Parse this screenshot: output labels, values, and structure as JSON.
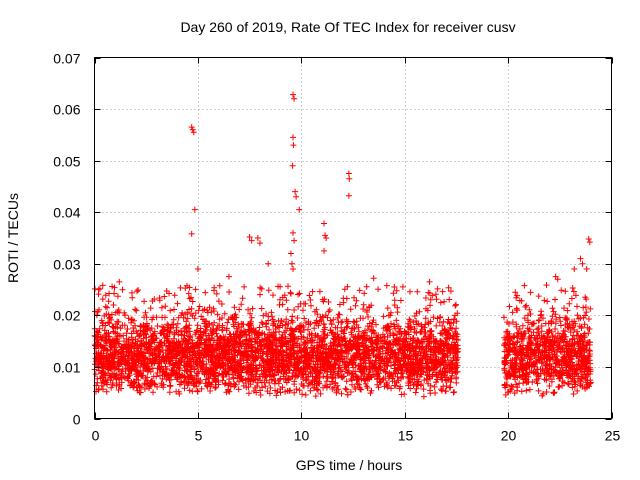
{
  "chart_data": {
    "type": "scatter",
    "title": "Day 260 of 2019, Rate Of TEC Index for receiver cusv",
    "xlabel": "GPS time / hours",
    "ylabel": "ROTI / TECUs",
    "xlim": [
      0,
      25
    ],
    "ylim": [
      0,
      0.07
    ],
    "x_ticks": [
      0,
      5,
      10,
      15,
      20,
      25
    ],
    "y_ticks": [
      0,
      0.01,
      0.02,
      0.03,
      0.04,
      0.05,
      0.06,
      0.07
    ],
    "x_tick_labels": [
      "0",
      "5",
      "10",
      "15",
      "20",
      "25"
    ],
    "y_tick_labels": [
      "0",
      "0.01",
      "0.02",
      "0.03",
      "0.04",
      "0.05",
      "0.06",
      "0.07"
    ],
    "grid": true,
    "marker": "+",
    "color": "#ff0000",
    "data_gaps_hours": [
      [
        17.6,
        19.8
      ]
    ],
    "series": [
      {
        "name": "ROTI",
        "points": [
          [
            4.7,
            0.0565
          ],
          [
            4.75,
            0.056
          ],
          [
            4.8,
            0.0555
          ],
          [
            4.85,
            0.0405
          ],
          [
            4.7,
            0.0358
          ],
          [
            9.6,
            0.0628
          ],
          [
            9.65,
            0.062
          ],
          [
            9.6,
            0.0545
          ],
          [
            9.62,
            0.053
          ],
          [
            9.58,
            0.049
          ],
          [
            9.7,
            0.044
          ],
          [
            9.75,
            0.043
          ],
          [
            9.9,
            0.0405
          ],
          [
            9.6,
            0.036
          ],
          [
            9.65,
            0.0345
          ],
          [
            11.1,
            0.0378
          ],
          [
            11.15,
            0.0355
          ],
          [
            11.2,
            0.035
          ],
          [
            11.1,
            0.0325
          ],
          [
            12.3,
            0.0475
          ],
          [
            12.32,
            0.0465
          ],
          [
            12.3,
            0.0432
          ],
          [
            7.5,
            0.0352
          ],
          [
            7.6,
            0.0345
          ],
          [
            7.9,
            0.035
          ],
          [
            8.0,
            0.034
          ],
          [
            8.4,
            0.03
          ],
          [
            9.5,
            0.032
          ],
          [
            9.55,
            0.03
          ],
          [
            9.6,
            0.029
          ],
          [
            23.9,
            0.0348
          ],
          [
            23.95,
            0.0342
          ],
          [
            23.5,
            0.031
          ],
          [
            23.6,
            0.03
          ],
          [
            23.2,
            0.029
          ],
          [
            23.8,
            0.029
          ],
          [
            22.3,
            0.0275
          ],
          [
            22.4,
            0.027
          ],
          [
            6.5,
            0.0275
          ],
          [
            13.5,
            0.0272
          ],
          [
            16.2,
            0.0265
          ],
          [
            0.2,
            0.025
          ],
          [
            1.2,
            0.0265
          ],
          [
            14.5,
            0.0255
          ],
          [
            5.0,
            0.029
          ]
        ]
      }
    ],
    "dense_band_note": "Dense clusters of points between roughly 0.003 and 0.025 TECU/s for 0 to 17.6 h and 19.8 to 24 h"
  }
}
